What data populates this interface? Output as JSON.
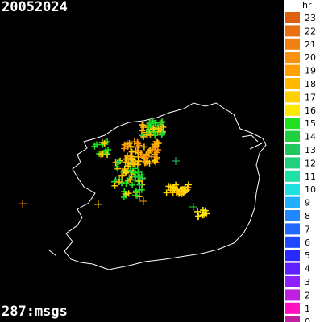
{
  "header": {
    "title": "20052024",
    "count": "287:msgs"
  },
  "legend": {
    "title": "hr",
    "items": [
      {
        "label": "23",
        "color": "#e06010"
      },
      {
        "label": "22",
        "color": "#e87010"
      },
      {
        "label": "21",
        "color": "#f08010"
      },
      {
        "label": "20",
        "color": "#f89010"
      },
      {
        "label": "19",
        "color": "#ffa000"
      },
      {
        "label": "18",
        "color": "#ffb800"
      },
      {
        "label": "17",
        "color": "#ffd000"
      },
      {
        "label": "16",
        "color": "#ffe800"
      },
      {
        "label": "15",
        "color": "#20e020"
      },
      {
        "label": "14",
        "color": "#20d040"
      },
      {
        "label": "13",
        "color": "#20c860"
      },
      {
        "label": "12",
        "color": "#20d080"
      },
      {
        "label": "11",
        "color": "#20e0a8"
      },
      {
        "label": "10",
        "color": "#20e0e0"
      },
      {
        "label": "9",
        "color": "#20b0ff"
      },
      {
        "label": "8",
        "color": "#2088ff"
      },
      {
        "label": "7",
        "color": "#2068ff"
      },
      {
        "label": "6",
        "color": "#2048ff"
      },
      {
        "label": "5",
        "color": "#2828ff"
      },
      {
        "label": "4",
        "color": "#6020ff"
      },
      {
        "label": "3",
        "color": "#8c20ff"
      },
      {
        "label": "2",
        "color": "#c020e0"
      },
      {
        "label": "1",
        "color": "#ff10c0"
      },
      {
        "label": "0",
        "color": "#c020a0"
      }
    ]
  }
}
